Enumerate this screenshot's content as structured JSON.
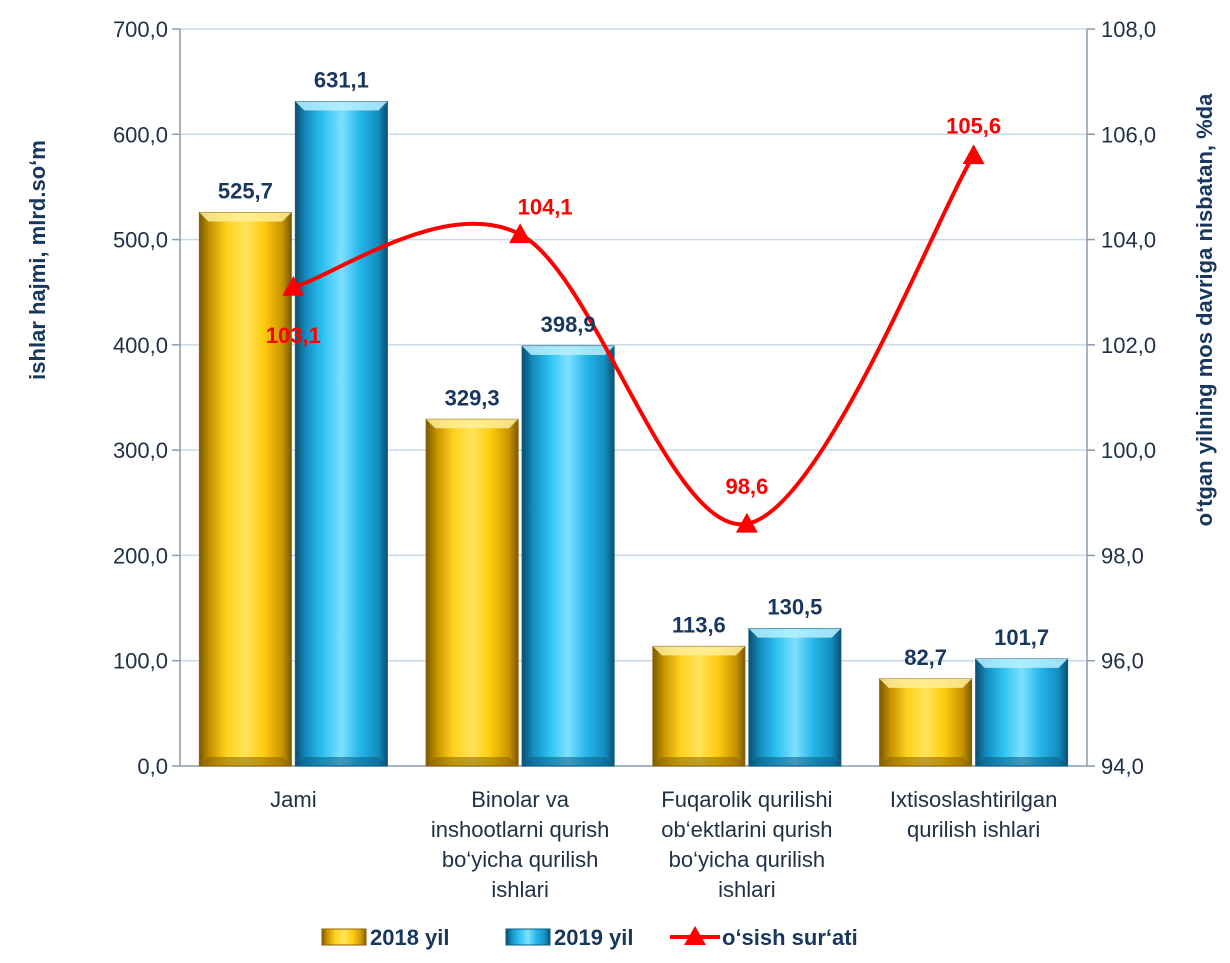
{
  "chart_data": {
    "type": "bar",
    "categories": [
      [
        "Jami"
      ],
      [
        "Binolar va",
        "inshootlarni qurish",
        "bo‘yicha qurilish",
        "ishlari"
      ],
      [
        "Fuqarolik qurilishi",
        "ob‘ektlarini qurish",
        "bo‘yicha qurilish",
        "ishlari"
      ],
      [
        "Ixtisoslashtirilgan",
        "qurilish ishlari"
      ]
    ],
    "series": [
      {
        "name": "2018 yil",
        "values": [
          525.7,
          329.3,
          113.6,
          82.7
        ],
        "labels": [
          "525,7",
          "329,3",
          "113,6",
          "82,7"
        ],
        "color": "#f5b800"
      },
      {
        "name": "2019 yil",
        "values": [
          631.1,
          398.9,
          130.5,
          101.7
        ],
        "labels": [
          "631,1",
          "398,9",
          "130,5",
          "101,7"
        ],
        "color": "#1aa3d9"
      }
    ],
    "line_series": {
      "name": "o‘sish sur‘ati",
      "values": [
        103.1,
        104.1,
        98.6,
        105.6
      ],
      "labels": [
        "103,1",
        "104,1",
        "98,6",
        "105,6"
      ],
      "color": "#ff0000",
      "axis": "right"
    },
    "ylabel": "ishlar hajmi, mlrd.so‘m",
    "y2label": "o‘tgan yilning mos davriga nisbatan, %da",
    "ylim": [
      0,
      700
    ],
    "y2lim": [
      94,
      108
    ],
    "yticks": [
      "0,0",
      "100,0",
      "200,0",
      "300,0",
      "400,0",
      "500,0",
      "600,0",
      "700,0"
    ],
    "y2ticks": [
      "94,0",
      "96,0",
      "98,0",
      "100,0",
      "102,0",
      "104,0",
      "106,0",
      "108,0"
    ],
    "grid": true,
    "legend_position": "bottom"
  }
}
